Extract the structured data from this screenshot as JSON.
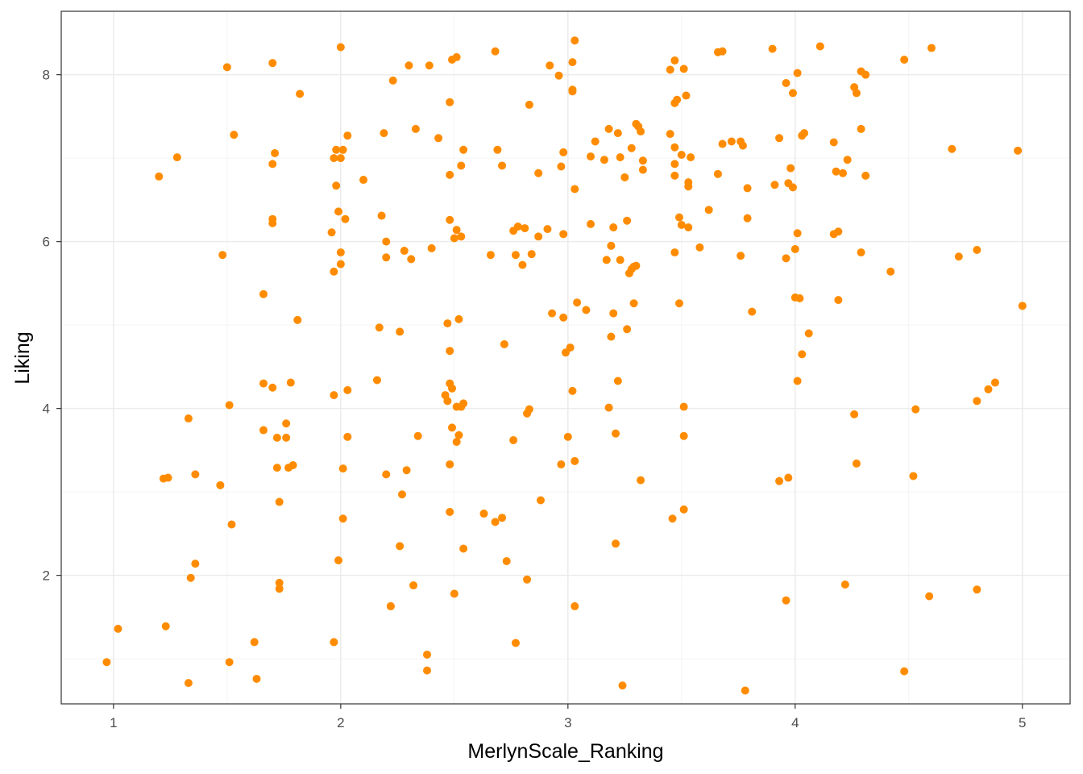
{
  "colors": {
    "point": "#FF8C00",
    "grid_major": "#ebebeb",
    "grid_minor": "#f4f4f4",
    "panel_border": "#333333",
    "tick_text": "#4d4d4d"
  },
  "chart_data": {
    "type": "scatter",
    "title": "",
    "xlabel": "MerlynScale_Ranking",
    "ylabel": "Liking",
    "xlim": [
      0.77,
      5.21
    ],
    "ylim": [
      0.46,
      8.76
    ],
    "x_ticks": [
      1,
      2,
      3,
      4,
      5
    ],
    "x_tick_labels": [
      "1",
      "2",
      "3",
      "4",
      "5"
    ],
    "y_ticks": [
      2,
      4,
      6,
      8
    ],
    "y_tick_labels": [
      "2",
      "4",
      "6",
      "8"
    ],
    "grid": true,
    "legend": "none",
    "points": [
      [
        0.97,
        0.96
      ],
      [
        1.02,
        1.36
      ],
      [
        1.2,
        6.78
      ],
      [
        1.22,
        3.16
      ],
      [
        1.23,
        1.39
      ],
      [
        1.24,
        3.17
      ],
      [
        1.28,
        7.01
      ],
      [
        1.33,
        3.88
      ],
      [
        1.33,
        0.71
      ],
      [
        1.34,
        1.97
      ],
      [
        1.36,
        3.21
      ],
      [
        1.36,
        2.14
      ],
      [
        1.47,
        3.08
      ],
      [
        1.48,
        5.84
      ],
      [
        1.5,
        8.09
      ],
      [
        1.51,
        4.04
      ],
      [
        1.51,
        0.96
      ],
      [
        1.52,
        2.61
      ],
      [
        1.53,
        7.28
      ],
      [
        1.62,
        1.2
      ],
      [
        1.63,
        0.76
      ],
      [
        1.66,
        5.37
      ],
      [
        1.66,
        4.3
      ],
      [
        1.66,
        3.74
      ],
      [
        1.7,
        8.14
      ],
      [
        1.7,
        6.93
      ],
      [
        1.7,
        6.27
      ],
      [
        1.7,
        6.22
      ],
      [
        1.71,
        7.06
      ],
      [
        1.7,
        4.25
      ],
      [
        1.72,
        3.65
      ],
      [
        1.72,
        3.29
      ],
      [
        1.73,
        2.88
      ],
      [
        1.73,
        1.91
      ],
      [
        1.73,
        1.84
      ],
      [
        1.76,
        3.82
      ],
      [
        1.76,
        3.65
      ],
      [
        1.77,
        3.29
      ],
      [
        1.78,
        4.31
      ],
      [
        1.79,
        3.32
      ],
      [
        1.81,
        5.06
      ],
      [
        1.82,
        7.77
      ],
      [
        1.96,
        6.11
      ],
      [
        1.97,
        7.0
      ],
      [
        1.97,
        5.64
      ],
      [
        1.97,
        4.16
      ],
      [
        1.97,
        1.2
      ],
      [
        1.98,
        6.67
      ],
      [
        1.98,
        7.1
      ],
      [
        1.99,
        6.36
      ],
      [
        1.99,
        2.18
      ],
      [
        2.0,
        7.0
      ],
      [
        2.0,
        8.33
      ],
      [
        2.0,
        5.87
      ],
      [
        2.0,
        5.73
      ],
      [
        2.01,
        7.1
      ],
      [
        2.01,
        3.28
      ],
      [
        2.01,
        2.68
      ],
      [
        2.02,
        6.27
      ],
      [
        2.03,
        7.27
      ],
      [
        2.03,
        4.22
      ],
      [
        2.03,
        3.66
      ],
      [
        2.1,
        6.74
      ],
      [
        2.16,
        4.34
      ],
      [
        2.17,
        4.97
      ],
      [
        2.18,
        6.31
      ],
      [
        2.19,
        7.3
      ],
      [
        2.2,
        6.0
      ],
      [
        2.2,
        5.81
      ],
      [
        2.2,
        3.21
      ],
      [
        2.22,
        1.63
      ],
      [
        2.22,
        1.63
      ],
      [
        2.23,
        7.93
      ],
      [
        2.26,
        4.92
      ],
      [
        2.26,
        2.35
      ],
      [
        2.27,
        2.97
      ],
      [
        2.28,
        5.89
      ],
      [
        2.29,
        3.26
      ],
      [
        2.3,
        8.11
      ],
      [
        2.31,
        5.79
      ],
      [
        2.32,
        1.88
      ],
      [
        2.33,
        7.35
      ],
      [
        2.34,
        3.67
      ],
      [
        2.38,
        1.05
      ],
      [
        2.38,
        0.86
      ],
      [
        2.39,
        8.11
      ],
      [
        2.4,
        5.92
      ],
      [
        2.43,
        7.24
      ],
      [
        2.46,
        4.16
      ],
      [
        2.47,
        4.09
      ],
      [
        2.47,
        5.02
      ],
      [
        2.48,
        7.67
      ],
      [
        2.48,
        6.8
      ],
      [
        2.48,
        6.26
      ],
      [
        2.48,
        4.69
      ],
      [
        2.48,
        4.3
      ],
      [
        2.48,
        3.33
      ],
      [
        2.48,
        2.76
      ],
      [
        2.49,
        8.18
      ],
      [
        2.49,
        4.24
      ],
      [
        2.49,
        3.77
      ],
      [
        2.5,
        1.78
      ],
      [
        2.5,
        6.04
      ],
      [
        2.51,
        8.21
      ],
      [
        2.51,
        6.14
      ],
      [
        2.51,
        4.02
      ],
      [
        2.51,
        3.6
      ],
      [
        2.52,
        5.07
      ],
      [
        2.52,
        3.68
      ],
      [
        2.53,
        6.91
      ],
      [
        2.53,
        6.06
      ],
      [
        2.53,
        4.02
      ],
      [
        2.54,
        7.1
      ],
      [
        2.54,
        4.06
      ],
      [
        2.54,
        2.32
      ],
      [
        2.63,
        2.74
      ],
      [
        2.66,
        5.84
      ],
      [
        2.68,
        8.28
      ],
      [
        2.68,
        2.64
      ],
      [
        2.69,
        7.1
      ],
      [
        2.71,
        6.91
      ],
      [
        2.71,
        2.69
      ],
      [
        2.72,
        4.77
      ],
      [
        2.73,
        2.17
      ],
      [
        2.76,
        6.13
      ],
      [
        2.76,
        3.62
      ],
      [
        2.77,
        5.84
      ],
      [
        2.77,
        1.19
      ],
      [
        2.78,
        6.18
      ],
      [
        2.8,
        5.72
      ],
      [
        2.81,
        6.16
      ],
      [
        2.82,
        1.95
      ],
      [
        2.82,
        3.94
      ],
      [
        2.83,
        7.64
      ],
      [
        2.83,
        3.99
      ],
      [
        2.84,
        5.85
      ],
      [
        2.87,
        6.82
      ],
      [
        2.87,
        6.06
      ],
      [
        2.88,
        2.9
      ],
      [
        2.91,
        6.15
      ],
      [
        2.92,
        8.11
      ],
      [
        2.93,
        5.14
      ],
      [
        2.96,
        7.99
      ],
      [
        2.97,
        6.9
      ],
      [
        2.97,
        3.33
      ],
      [
        2.98,
        7.07
      ],
      [
        2.98,
        6.09
      ],
      [
        2.98,
        5.09
      ],
      [
        2.99,
        4.67
      ],
      [
        3.0,
        3.66
      ],
      [
        3.01,
        4.73
      ],
      [
        3.02,
        8.15
      ],
      [
        3.02,
        7.82
      ],
      [
        3.02,
        7.8
      ],
      [
        3.02,
        4.21
      ],
      [
        3.03,
        8.41
      ],
      [
        3.03,
        6.63
      ],
      [
        3.03,
        3.37
      ],
      [
        3.03,
        1.63
      ],
      [
        3.04,
        5.27
      ],
      [
        3.08,
        5.18
      ],
      [
        3.1,
        7.02
      ],
      [
        3.1,
        6.21
      ],
      [
        3.12,
        7.2
      ],
      [
        3.16,
        6.98
      ],
      [
        3.17,
        5.78
      ],
      [
        3.18,
        7.35
      ],
      [
        3.18,
        4.01
      ],
      [
        3.19,
        5.95
      ],
      [
        3.19,
        4.86
      ],
      [
        3.2,
        6.17
      ],
      [
        3.2,
        5.14
      ],
      [
        3.21,
        3.7
      ],
      [
        3.21,
        2.38
      ],
      [
        3.22,
        7.3
      ],
      [
        3.22,
        4.33
      ],
      [
        3.23,
        7.01
      ],
      [
        3.23,
        5.78
      ],
      [
        3.24,
        0.68
      ],
      [
        3.25,
        6.77
      ],
      [
        3.26,
        6.25
      ],
      [
        3.26,
        4.95
      ],
      [
        3.27,
        5.62
      ],
      [
        3.28,
        7.12
      ],
      [
        3.28,
        5.67
      ],
      [
        3.29,
        5.26
      ],
      [
        3.29,
        5.7
      ],
      [
        3.3,
        7.41
      ],
      [
        3.3,
        5.71
      ],
      [
        3.31,
        7.38
      ],
      [
        3.32,
        7.32
      ],
      [
        3.33,
        6.86
      ],
      [
        3.33,
        6.97
      ],
      [
        3.32,
        3.14
      ],
      [
        3.45,
        8.06
      ],
      [
        3.45,
        7.29
      ],
      [
        3.46,
        2.68
      ],
      [
        3.47,
        8.17
      ],
      [
        3.47,
        7.13
      ],
      [
        3.47,
        6.93
      ],
      [
        3.47,
        6.79
      ],
      [
        3.47,
        5.87
      ],
      [
        3.47,
        7.66
      ],
      [
        3.48,
        7.7
      ],
      [
        3.49,
        5.26
      ],
      [
        3.49,
        6.29
      ],
      [
        3.5,
        6.2
      ],
      [
        3.5,
        7.04
      ],
      [
        3.51,
        3.67
      ],
      [
        3.51,
        8.07
      ],
      [
        3.51,
        4.02
      ],
      [
        3.51,
        2.79
      ],
      [
        3.52,
        7.75
      ],
      [
        3.53,
        6.66
      ],
      [
        3.53,
        6.71
      ],
      [
        3.53,
        6.17
      ],
      [
        3.54,
        7.01
      ],
      [
        3.58,
        5.93
      ],
      [
        3.62,
        6.38
      ],
      [
        3.66,
        8.27
      ],
      [
        3.66,
        6.81
      ],
      [
        3.68,
        8.28
      ],
      [
        3.68,
        7.17
      ],
      [
        3.72,
        7.2
      ],
      [
        3.76,
        7.2
      ],
      [
        3.76,
        5.83
      ],
      [
        3.77,
        7.15
      ],
      [
        3.79,
        6.64
      ],
      [
        3.79,
        6.28
      ],
      [
        3.81,
        5.16
      ],
      [
        3.78,
        0.62
      ],
      [
        3.9,
        8.31
      ],
      [
        3.91,
        6.68
      ],
      [
        3.93,
        7.24
      ],
      [
        3.93,
        3.13
      ],
      [
        3.96,
        7.9
      ],
      [
        3.96,
        5.8
      ],
      [
        3.96,
        1.7
      ],
      [
        3.97,
        6.7
      ],
      [
        3.97,
        3.17
      ],
      [
        3.98,
        6.88
      ],
      [
        3.99,
        7.78
      ],
      [
        3.99,
        6.65
      ],
      [
        4.0,
        5.33
      ],
      [
        4.0,
        5.91
      ],
      [
        4.01,
        8.02
      ],
      [
        4.01,
        6.1
      ],
      [
        4.01,
        4.33
      ],
      [
        4.02,
        5.32
      ],
      [
        4.03,
        7.27
      ],
      [
        4.03,
        4.65
      ],
      [
        4.04,
        7.3
      ],
      [
        4.06,
        4.9
      ],
      [
        4.11,
        8.34
      ],
      [
        4.17,
        7.19
      ],
      [
        4.17,
        6.09
      ],
      [
        4.18,
        6.84
      ],
      [
        4.19,
        6.12
      ],
      [
        4.19,
        5.3
      ],
      [
        4.21,
        6.82
      ],
      [
        4.22,
        1.89
      ],
      [
        4.23,
        6.98
      ],
      [
        4.26,
        7.85
      ],
      [
        4.26,
        3.93
      ],
      [
        4.27,
        7.78
      ],
      [
        4.27,
        3.34
      ],
      [
        4.29,
        7.35
      ],
      [
        4.29,
        5.87
      ],
      [
        4.29,
        8.04
      ],
      [
        4.31,
        8.0
      ],
      [
        4.31,
        6.79
      ],
      [
        4.42,
        5.64
      ],
      [
        4.48,
        8.18
      ],
      [
        4.48,
        0.85
      ],
      [
        4.52,
        3.19
      ],
      [
        4.53,
        3.99
      ],
      [
        4.59,
        1.75
      ],
      [
        4.6,
        8.32
      ],
      [
        4.69,
        7.11
      ],
      [
        4.72,
        5.82
      ],
      [
        4.8,
        5.9
      ],
      [
        4.8,
        4.09
      ],
      [
        4.8,
        1.83
      ],
      [
        4.85,
        4.23
      ],
      [
        4.88,
        4.31
      ],
      [
        4.98,
        7.09
      ],
      [
        5.0,
        5.23
      ]
    ]
  }
}
